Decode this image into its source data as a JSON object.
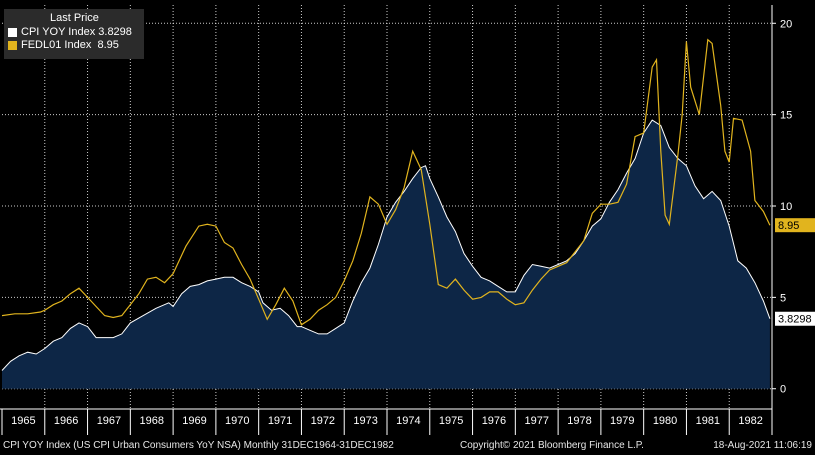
{
  "legend": {
    "header": "Last Price",
    "items": [
      {
        "name": "CPI YOY Index",
        "value": "3.8298",
        "color": "#ffffff"
      },
      {
        "name": "FEDL01 Index",
        "value": "8.95",
        "color": "#e1b41e"
      }
    ]
  },
  "footer": {
    "left": "CPI YOY Index (US CPI Urban Consumers YoY NSA)  Monthly 31DEC1964-31DEC1982",
    "center": "Copyright© 2021 Bloomberg Finance L.P.",
    "right": "18-Aug-2021 11:06:19"
  },
  "colors": {
    "cpi_fill": "#0d2646",
    "cpi_line": "#ffffff",
    "fed_line": "#e1b41e",
    "grid": "#ffffff",
    "axis": "#ffffff"
  },
  "chart_data": {
    "type": "area",
    "xlim": [
      1965.0,
      1983.0
    ],
    "ylim": [
      -1,
      21
    ],
    "x_ticks": [
      "1965",
      "1966",
      "1967",
      "1968",
      "1969",
      "1970",
      "1971",
      "1972",
      "1973",
      "1974",
      "1975",
      "1976",
      "1977",
      "1978",
      "1979",
      "1980",
      "1981",
      "1982"
    ],
    "y_ticks": [
      0,
      5,
      10,
      15,
      20
    ],
    "last_value_labels": [
      {
        "series": "FEDL01 Index",
        "value": 8.95
      },
      {
        "series": "CPI YOY Index",
        "value": 3.8298
      }
    ],
    "series": [
      {
        "name": "CPI YOY Index",
        "style": "area",
        "points": [
          [
            1965.0,
            1.0
          ],
          [
            1965.2,
            1.5
          ],
          [
            1965.4,
            1.8
          ],
          [
            1965.6,
            2.0
          ],
          [
            1965.8,
            1.9
          ],
          [
            1966.0,
            2.2
          ],
          [
            1966.2,
            2.6
          ],
          [
            1966.4,
            2.8
          ],
          [
            1966.6,
            3.3
          ],
          [
            1966.8,
            3.6
          ],
          [
            1967.0,
            3.4
          ],
          [
            1967.2,
            2.8
          ],
          [
            1967.4,
            2.8
          ],
          [
            1967.6,
            2.8
          ],
          [
            1967.8,
            3.0
          ],
          [
            1968.0,
            3.6
          ],
          [
            1968.3,
            4.0
          ],
          [
            1968.6,
            4.4
          ],
          [
            1968.9,
            4.7
          ],
          [
            1969.0,
            4.5
          ],
          [
            1969.2,
            5.2
          ],
          [
            1969.4,
            5.6
          ],
          [
            1969.6,
            5.7
          ],
          [
            1969.8,
            5.9
          ],
          [
            1970.0,
            6.0
          ],
          [
            1970.2,
            6.1
          ],
          [
            1970.4,
            6.1
          ],
          [
            1970.6,
            5.8
          ],
          [
            1970.8,
            5.6
          ],
          [
            1971.0,
            5.3
          ],
          [
            1971.1,
            4.7
          ],
          [
            1971.3,
            4.3
          ],
          [
            1971.5,
            4.4
          ],
          [
            1971.7,
            4.0
          ],
          [
            1971.9,
            3.4
          ],
          [
            1972.0,
            3.4
          ],
          [
            1972.2,
            3.2
          ],
          [
            1972.4,
            3.0
          ],
          [
            1972.6,
            3.0
          ],
          [
            1972.8,
            3.3
          ],
          [
            1973.0,
            3.6
          ],
          [
            1973.2,
            4.8
          ],
          [
            1973.4,
            5.8
          ],
          [
            1973.6,
            6.6
          ],
          [
            1973.8,
            7.9
          ],
          [
            1974.0,
            9.4
          ],
          [
            1974.2,
            10.2
          ],
          [
            1974.4,
            10.8
          ],
          [
            1974.6,
            11.5
          ],
          [
            1974.8,
            12.1
          ],
          [
            1974.9,
            12.2
          ],
          [
            1975.0,
            11.5
          ],
          [
            1975.2,
            10.5
          ],
          [
            1975.4,
            9.4
          ],
          [
            1975.6,
            8.6
          ],
          [
            1975.8,
            7.4
          ],
          [
            1976.0,
            6.7
          ],
          [
            1976.2,
            6.1
          ],
          [
            1976.4,
            5.9
          ],
          [
            1976.6,
            5.6
          ],
          [
            1976.8,
            5.3
          ],
          [
            1977.0,
            5.3
          ],
          [
            1977.2,
            6.2
          ],
          [
            1977.4,
            6.8
          ],
          [
            1977.6,
            6.7
          ],
          [
            1977.8,
            6.6
          ],
          [
            1978.0,
            6.8
          ],
          [
            1978.2,
            7.0
          ],
          [
            1978.4,
            7.4
          ],
          [
            1978.6,
            8.1
          ],
          [
            1978.8,
            8.9
          ],
          [
            1979.0,
            9.3
          ],
          [
            1979.2,
            10.2
          ],
          [
            1979.4,
            10.9
          ],
          [
            1979.6,
            11.8
          ],
          [
            1979.8,
            12.6
          ],
          [
            1980.0,
            14.0
          ],
          [
            1980.2,
            14.7
          ],
          [
            1980.4,
            14.4
          ],
          [
            1980.6,
            13.2
          ],
          [
            1980.8,
            12.6
          ],
          [
            1981.0,
            12.2
          ],
          [
            1981.2,
            11.1
          ],
          [
            1981.4,
            10.4
          ],
          [
            1981.6,
            10.8
          ],
          [
            1981.8,
            10.3
          ],
          [
            1982.0,
            8.9
          ],
          [
            1982.2,
            7.0
          ],
          [
            1982.4,
            6.6
          ],
          [
            1982.6,
            5.8
          ],
          [
            1982.8,
            4.8
          ],
          [
            1982.95,
            3.8298
          ]
        ]
      },
      {
        "name": "FEDL01 Index",
        "style": "line",
        "points": [
          [
            1965.0,
            4.0
          ],
          [
            1965.3,
            4.1
          ],
          [
            1965.6,
            4.1
          ],
          [
            1965.9,
            4.2
          ],
          [
            1966.0,
            4.3
          ],
          [
            1966.2,
            4.6
          ],
          [
            1966.4,
            4.8
          ],
          [
            1966.6,
            5.2
          ],
          [
            1966.8,
            5.5
          ],
          [
            1967.0,
            5.0
          ],
          [
            1967.2,
            4.5
          ],
          [
            1967.4,
            4.0
          ],
          [
            1967.6,
            3.9
          ],
          [
            1967.8,
            4.0
          ],
          [
            1968.0,
            4.6
          ],
          [
            1968.2,
            5.2
          ],
          [
            1968.4,
            6.0
          ],
          [
            1968.6,
            6.1
          ],
          [
            1968.8,
            5.8
          ],
          [
            1969.0,
            6.3
          ],
          [
            1969.3,
            7.8
          ],
          [
            1969.6,
            8.9
          ],
          [
            1969.8,
            9.0
          ],
          [
            1970.0,
            8.9
          ],
          [
            1970.2,
            8.0
          ],
          [
            1970.4,
            7.7
          ],
          [
            1970.6,
            6.8
          ],
          [
            1970.8,
            6.0
          ],
          [
            1971.0,
            4.9
          ],
          [
            1971.2,
            3.8
          ],
          [
            1971.4,
            4.6
          ],
          [
            1971.6,
            5.5
          ],
          [
            1971.8,
            4.8
          ],
          [
            1972.0,
            3.5
          ],
          [
            1972.2,
            3.8
          ],
          [
            1972.4,
            4.3
          ],
          [
            1972.6,
            4.6
          ],
          [
            1972.8,
            5.0
          ],
          [
            1973.0,
            5.9
          ],
          [
            1973.2,
            7.0
          ],
          [
            1973.4,
            8.5
          ],
          [
            1973.6,
            10.5
          ],
          [
            1973.8,
            10.1
          ],
          [
            1974.0,
            9.0
          ],
          [
            1974.2,
            9.8
          ],
          [
            1974.4,
            11.0
          ],
          [
            1974.6,
            13.0
          ],
          [
            1974.8,
            12.0
          ],
          [
            1975.0,
            9.0
          ],
          [
            1975.2,
            5.7
          ],
          [
            1975.4,
            5.5
          ],
          [
            1975.6,
            6.0
          ],
          [
            1975.8,
            5.4
          ],
          [
            1976.0,
            4.9
          ],
          [
            1976.2,
            5.0
          ],
          [
            1976.4,
            5.3
          ],
          [
            1976.6,
            5.3
          ],
          [
            1976.8,
            4.9
          ],
          [
            1977.0,
            4.6
          ],
          [
            1977.2,
            4.7
          ],
          [
            1977.4,
            5.4
          ],
          [
            1977.6,
            6.0
          ],
          [
            1977.8,
            6.5
          ],
          [
            1978.0,
            6.7
          ],
          [
            1978.2,
            6.9
          ],
          [
            1978.4,
            7.5
          ],
          [
            1978.6,
            8.1
          ],
          [
            1978.8,
            9.6
          ],
          [
            1979.0,
            10.1
          ],
          [
            1979.2,
            10.1
          ],
          [
            1979.4,
            10.2
          ],
          [
            1979.6,
            11.2
          ],
          [
            1979.8,
            13.8
          ],
          [
            1980.0,
            14.0
          ],
          [
            1980.2,
            17.6
          ],
          [
            1980.3,
            18.0
          ],
          [
            1980.4,
            13.0
          ],
          [
            1980.5,
            9.5
          ],
          [
            1980.6,
            9.0
          ],
          [
            1980.8,
            12.8
          ],
          [
            1980.9,
            15.0
          ],
          [
            1981.0,
            19.0
          ],
          [
            1981.1,
            16.5
          ],
          [
            1981.3,
            15.0
          ],
          [
            1981.5,
            19.1
          ],
          [
            1981.6,
            18.9
          ],
          [
            1981.8,
            15.5
          ],
          [
            1981.9,
            13.0
          ],
          [
            1982.0,
            12.4
          ],
          [
            1982.1,
            14.8
          ],
          [
            1982.3,
            14.7
          ],
          [
            1982.5,
            13.0
          ],
          [
            1982.6,
            10.3
          ],
          [
            1982.8,
            9.7
          ],
          [
            1982.95,
            8.95
          ]
        ]
      }
    ]
  }
}
